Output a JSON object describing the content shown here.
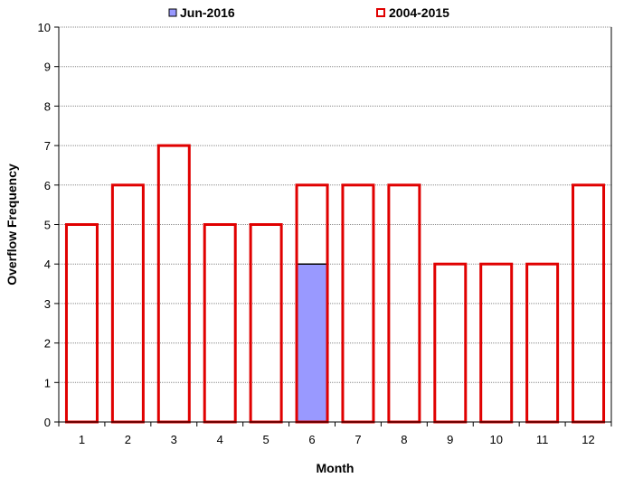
{
  "chart_data": {
    "type": "bar",
    "categories": [
      "1",
      "2",
      "3",
      "4",
      "5",
      "6",
      "7",
      "8",
      "9",
      "10",
      "11",
      "12"
    ],
    "series": [
      {
        "name": "2004-2015",
        "values": [
          5,
          6,
          7,
          5,
          5,
          6,
          6,
          6,
          4,
          4,
          4,
          6
        ],
        "color": "#e00000",
        "style": "outline"
      },
      {
        "name": "Jun-2016",
        "values": [
          null,
          null,
          null,
          null,
          null,
          4,
          null,
          null,
          null,
          null,
          null,
          null
        ],
        "color": "#9999ff",
        "style": "filled"
      }
    ],
    "xlabel": "Month",
    "ylabel": "Overflow Frequency",
    "ylim": [
      0,
      10
    ],
    "yticks": [
      "0",
      "1",
      "2",
      "3",
      "4",
      "5",
      "6",
      "7",
      "8",
      "9",
      "10"
    ],
    "grid": true,
    "legend": "top",
    "legend_entries": [
      {
        "label": "Jun-2016",
        "color": "#9999ff",
        "style": "filled"
      },
      {
        "label": "2004-2015",
        "color": "#e00000",
        "style": "outline"
      }
    ]
  }
}
